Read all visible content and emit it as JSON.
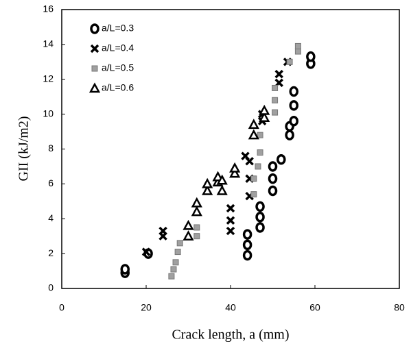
{
  "chart_data": {
    "type": "scatter",
    "x_label": "Crack length,  a (mm)",
    "y_label": "GII  (kJ/m2)",
    "xlim": [
      0,
      80
    ],
    "xticks": [
      0,
      20,
      40,
      60,
      80
    ],
    "ylim": [
      0,
      16
    ],
    "yticks": [
      0,
      2,
      4,
      6,
      8,
      10,
      12,
      14,
      16
    ],
    "grid": false,
    "legend": "upper left",
    "series": [
      {
        "name": "a/L=0.3",
        "marker": "circle",
        "color": "#000000",
        "x": [
          15,
          15,
          20.5,
          44,
          44,
          44,
          47,
          47,
          47,
          50,
          50,
          50,
          52,
          54,
          54,
          55,
          55,
          55,
          59,
          59
        ],
        "y": [
          0.9,
          1.1,
          2,
          1.9,
          2.5,
          3.1,
          3.5,
          4.1,
          4.7,
          5.6,
          6.3,
          7,
          7.4,
          8.8,
          9.3,
          9.6,
          10.5,
          11.3,
          12.9,
          13.3
        ]
      },
      {
        "name": "a/L=0.4",
        "marker": "x",
        "color": "#000000",
        "x": [
          20,
          24,
          24,
          40,
          40,
          40,
          43.5,
          44.5,
          44.5,
          44.5,
          47.5,
          47.5,
          51.5,
          51.5,
          53.5
        ],
        "y": [
          2.1,
          3.0,
          3.3,
          3.3,
          3.9,
          4.6,
          7.6,
          5.3,
          6.3,
          7.3,
          9.6,
          10.0,
          11.8,
          12.3,
          13.0
        ]
      },
      {
        "name": "a/L=0.5",
        "marker": "square",
        "color": "#a0a0a0",
        "x": [
          26,
          26.5,
          27,
          27.5,
          28,
          32,
          32,
          45.5,
          45.5,
          46.5,
          47,
          47,
          50.5,
          50.5,
          50.5,
          54,
          56,
          56
        ],
        "y": [
          0.7,
          1.1,
          1.5,
          2.1,
          2.6,
          3.0,
          3.5,
          5.4,
          6.3,
          7.0,
          7.8,
          8.8,
          10.1,
          10.8,
          11.5,
          13.0,
          13.6,
          13.9
        ]
      },
      {
        "name": "a/L=0.6",
        "marker": "triangle",
        "color": "#000000",
        "x": [
          30,
          30,
          32,
          32,
          34.5,
          34.5,
          37,
          37,
          38,
          38,
          41,
          41,
          45.5,
          45.5,
          48,
          48
        ],
        "y": [
          3.0,
          3.6,
          4.4,
          4.9,
          5.6,
          6.0,
          6.1,
          6.4,
          5.6,
          6.2,
          6.6,
          6.9,
          8.8,
          9.4,
          9.8,
          10.2
        ]
      }
    ]
  }
}
